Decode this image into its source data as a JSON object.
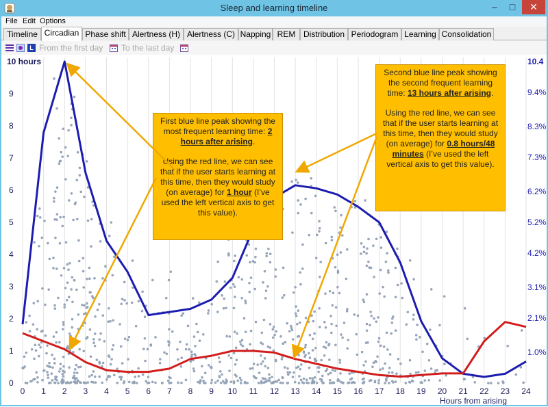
{
  "window": {
    "title": "Sleep and learning timeline",
    "controls": {
      "minimize": "–",
      "maximize": "□",
      "close": "✕"
    }
  },
  "menu": [
    {
      "label": "File"
    },
    {
      "label": "Edit"
    },
    {
      "label": "Options"
    }
  ],
  "tabs": [
    {
      "label": "Timeline"
    },
    {
      "label": "Circadian",
      "active": true
    },
    {
      "label": "Phase shift"
    },
    {
      "label": "Alertness (H)"
    },
    {
      "label": "Alertness (C)"
    },
    {
      "label": "Napping"
    },
    {
      "label": "REM"
    },
    {
      "label": "Distribution"
    },
    {
      "label": "Periodogram"
    },
    {
      "label": "Learning"
    },
    {
      "label": "Consolidation"
    }
  ],
  "toolbar": {
    "from_label": "From the first day",
    "to_label": "To the last day",
    "calendar_icon": "calendar-icon"
  },
  "chart_data": {
    "type": "line",
    "title": "",
    "xlabel": "Hours from arising",
    "ylabel_left": "10 hours",
    "ylabel_right": "10.4",
    "x": [
      0,
      1,
      2,
      3,
      4,
      5,
      6,
      7,
      8,
      9,
      10,
      11,
      12,
      13,
      14,
      15,
      16,
      17,
      18,
      19,
      20,
      21,
      22,
      23,
      24
    ],
    "x_ticks": [
      "0",
      "1",
      "2",
      "3",
      "4",
      "5",
      "6",
      "7",
      "8",
      "9",
      "10",
      "11",
      "12",
      "13",
      "14",
      "15",
      "16",
      "17",
      "18",
      "19",
      "20",
      "21",
      "22",
      "23",
      "24"
    ],
    "y_left_ticks": [
      "0",
      "1",
      "2",
      "3",
      "4",
      "5",
      "6",
      "7",
      "8",
      "9",
      "10 hours"
    ],
    "y_left_range": [
      0,
      10
    ],
    "y_right_ticks": [
      "1.0%",
      "2.1%",
      "3.1%",
      "4.2%",
      "5.2%",
      "6.2%",
      "7.3%",
      "8.3%",
      "9.4%",
      "10.4"
    ],
    "y_right_values": [
      1.0,
      2.1,
      3.1,
      4.2,
      5.2,
      6.2,
      7.3,
      8.3,
      9.4,
      10.4
    ],
    "y_right_range": [
      0,
      10.4
    ],
    "series": [
      {
        "name": "blue-line",
        "color": "#1c1cb0",
        "axis": "right",
        "values": [
          1.9,
          8.1,
          10.4,
          6.8,
          4.6,
          3.6,
          2.2,
          2.3,
          2.4,
          2.7,
          3.4,
          5.0,
          6.0,
          6.4,
          6.3,
          6.1,
          5.7,
          5.2,
          3.9,
          2.0,
          0.8,
          0.3,
          0.2,
          0.3,
          0.7
        ]
      },
      {
        "name": "red-line",
        "color": "#d21c1c",
        "axis": "left",
        "values": [
          1.55,
          1.3,
          1.05,
          0.65,
          0.4,
          0.35,
          0.35,
          0.45,
          0.75,
          0.85,
          1.0,
          1.0,
          0.95,
          0.75,
          0.6,
          0.45,
          0.35,
          0.25,
          0.2,
          0.25,
          0.3,
          0.3,
          1.3,
          1.9,
          1.75
        ]
      }
    ],
    "scatter": {
      "color": "#9aa9bd",
      "note": "learning repetitions"
    }
  },
  "callouts": [
    {
      "name": "first-peak",
      "line1a": "First blue line peak showing the most frequent learning time: ",
      "line1b": "2 hours after arising",
      "line1c": ".",
      "line2a": "Using the red line, we can see that if the user starts learning at this time, then they would study (on average) for ",
      "line2b": "1 hour",
      "line2c": " (I’ve used the left vertical axis to get this value)."
    },
    {
      "name": "second-peak",
      "line1a": "Second blue line peak showing the second frequent learning time: ",
      "line1b": "13 hours after arising",
      "line1c": ".",
      "line2a": "Using the red line, we can see that if the user starts learning at this time, then they would study (on average) for ",
      "line2b": "0.8 hours/48 minutes",
      "line2c": " (I’ve used the left vertical axis to get this value)."
    }
  ]
}
